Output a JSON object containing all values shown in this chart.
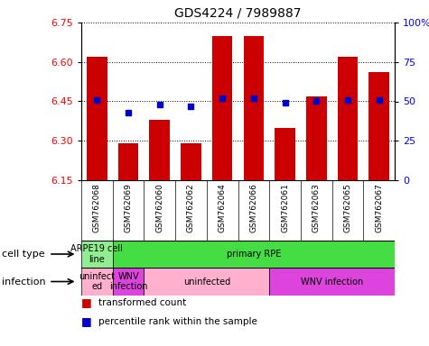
{
  "title": "GDS4224 / 7989887",
  "samples": [
    "GSM762068",
    "GSM762069",
    "GSM762060",
    "GSM762062",
    "GSM762064",
    "GSM762066",
    "GSM762061",
    "GSM762063",
    "GSM762065",
    "GSM762067"
  ],
  "transformed_count": [
    6.62,
    6.29,
    6.38,
    6.29,
    6.7,
    6.7,
    6.35,
    6.47,
    6.62,
    6.56
  ],
  "percentile_rank": [
    51,
    43,
    48,
    47,
    52,
    52,
    49,
    50,
    51,
    51
  ],
  "ylim": [
    6.15,
    6.75
  ],
  "yticks_left": [
    6.15,
    6.3,
    6.45,
    6.6,
    6.75
  ],
  "yticks_right_vals": [
    0,
    25,
    50,
    75,
    100
  ],
  "yticks_right_labels": [
    "0",
    "25",
    "50",
    "75",
    "100%"
  ],
  "bar_color": "#cc0000",
  "dot_color": "#0000cc",
  "bar_bottom": 6.15,
  "cell_type_labels": [
    [
      "ARPE19 cell\nline",
      0,
      1
    ],
    [
      "primary RPE",
      1,
      10
    ]
  ],
  "cell_type_colors": [
    "#90ee90",
    "#44dd44"
  ],
  "infection_labels": [
    [
      "uninfect\ned",
      0,
      1
    ],
    [
      "WNV\ninfection",
      1,
      2
    ],
    [
      "uninfected",
      2,
      6
    ],
    [
      "WNV infection",
      6,
      10
    ]
  ],
  "infection_colors": [
    "#ffb0cc",
    "#dd44dd",
    "#ffb0cc",
    "#dd44dd"
  ],
  "left_labels": [
    "cell type",
    "infection"
  ],
  "legend": [
    [
      "transformed count",
      "#cc0000"
    ],
    [
      "percentile rank within the sample",
      "#0000cc"
    ]
  ]
}
